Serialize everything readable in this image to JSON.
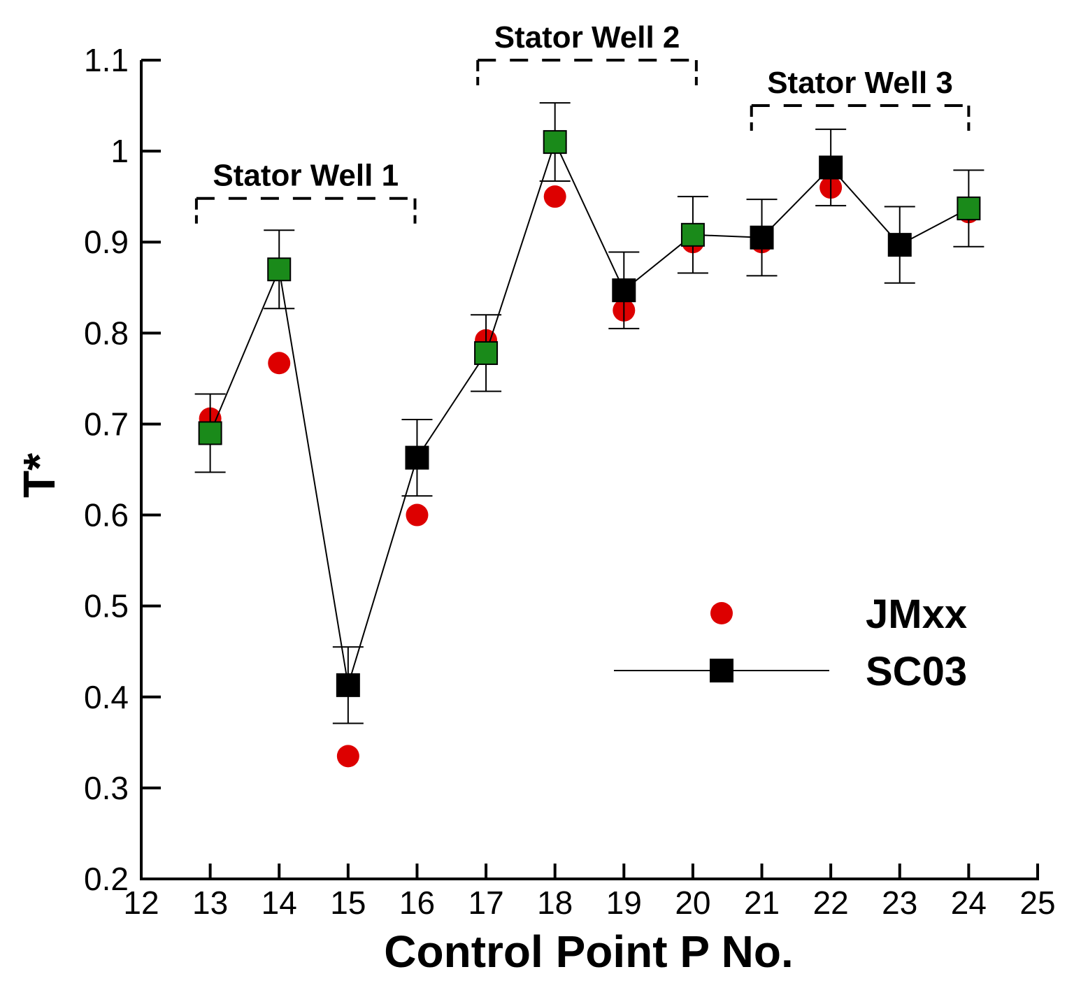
{
  "chart_data": {
    "type": "scatter",
    "xlabel": "Control Point P No.",
    "ylabel": "T*",
    "xlim": [
      12,
      25
    ],
    "ylim": [
      0.2,
      1.1
    ],
    "x_ticks": [
      12,
      13,
      14,
      15,
      16,
      17,
      18,
      19,
      20,
      21,
      22,
      23,
      24,
      25
    ],
    "y_ticks": [
      0.2,
      0.3,
      0.4,
      0.5,
      0.6,
      0.7,
      0.8,
      0.9,
      1,
      1.1
    ],
    "x_tick_labels": [
      "12",
      "13",
      "14",
      "15",
      "16",
      "17",
      "18",
      "19",
      "20",
      "21",
      "22",
      "23",
      "24",
      "25"
    ],
    "y_tick_labels": [
      "0.2",
      "0.3",
      "0.4",
      "0.5",
      "0.6",
      "0.7",
      "0.8",
      "0.9",
      "1",
      "1.1"
    ],
    "grid": false,
    "legend_position": "lower-right",
    "series": [
      {
        "name": "JMxx",
        "marker": "circle",
        "color": "#dd0000",
        "line": false,
        "x": [
          13,
          14,
          15,
          16,
          17,
          18,
          19,
          20,
          21,
          22,
          23,
          24
        ],
        "y": [
          0.706,
          0.767,
          0.335,
          0.6,
          0.792,
          0.95,
          0.825,
          0.9,
          0.9,
          0.96,
          0.897,
          0.933
        ]
      },
      {
        "name": "SC03",
        "marker": "square",
        "color": "#000000",
        "line": true,
        "x": [
          13,
          14,
          15,
          16,
          17,
          18,
          19,
          20,
          21,
          22,
          23,
          24
        ],
        "y": [
          0.69,
          0.87,
          0.413,
          0.663,
          0.778,
          1.01,
          0.847,
          0.908,
          0.905,
          0.982,
          0.897,
          0.937
        ],
        "y_err": [
          0.043,
          0.043,
          0.042,
          0.042,
          0.042,
          0.043,
          0.042,
          0.042,
          0.042,
          0.042,
          0.042,
          0.042
        ],
        "marker_fill": [
          "#1a8a1a",
          "#1a8a1a",
          "#000000",
          "#000000",
          "#1a8a1a",
          "#1a8a1a",
          "#000000",
          "#1a8a1a",
          "#000000",
          "#000000",
          "#000000",
          "#1a8a1a"
        ]
      }
    ],
    "annotations": [
      {
        "text": "Stator Well 1",
        "x_start": 12.8,
        "x_end": 15.97,
        "y": 0.948,
        "label_y": 0.962
      },
      {
        "text": "Stator Well 2",
        "x_start": 16.88,
        "x_end": 20.05,
        "y": 1.1,
        "label_y": 1.114
      },
      {
        "text": "Stator Well 3",
        "x_start": 20.85,
        "x_end": 24.0,
        "y": 1.05,
        "label_y": 1.064
      }
    ]
  }
}
